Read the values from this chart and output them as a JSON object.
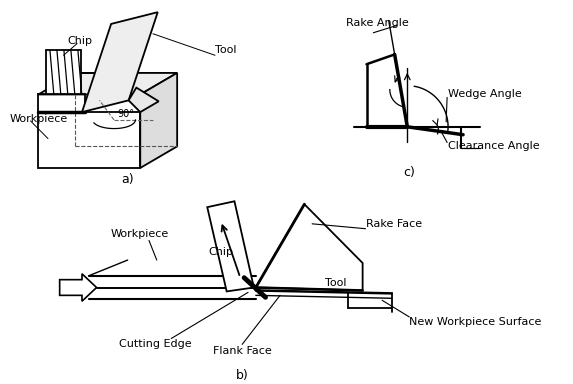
{
  "background_color": "#ffffff",
  "label_a": "a)",
  "label_b": "b)",
  "label_c": "c)",
  "annotations": {
    "chip_a": "Chip",
    "tool_a": "Tool",
    "workpiece_a": "Workpiece",
    "angle_90": "90°",
    "workpiece_b": "Workpiece",
    "chip_b": "Chip",
    "tool_b": "Tool",
    "rake_face": "Rake Face",
    "flank_face": "Flank Face",
    "cutting_edge": "Cutting Edge",
    "new_surface": "New Workpiece Surface",
    "rake_angle": "Rake Angle",
    "wedge_angle": "Wedge Angle",
    "clearance_angle": "Clearance Angle"
  }
}
